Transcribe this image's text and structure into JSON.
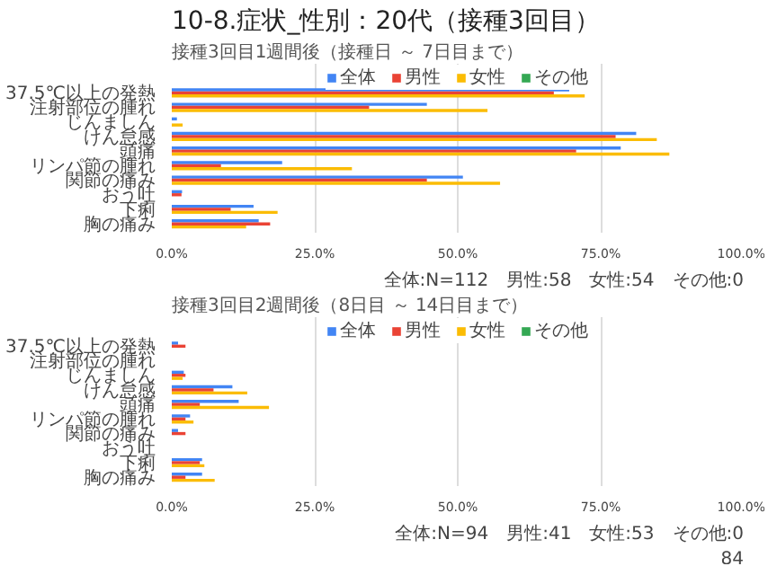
{
  "chart_data": [
    {
      "type": "bar",
      "orientation": "horizontal",
      "title": "10-8.症状_性別：20代（接種3回目）",
      "subtitle": "接種3回目1週間後（接種日 ～ 7日目まで）",
      "categories": [
        "37.5℃以上の発熱",
        "注射部位の腫れ",
        "じんましん",
        "けん怠感",
        "頭痛",
        "リンパ節の腫れ",
        "関節の痛み",
        "おう吐",
        "下痢",
        "胸の痛み"
      ],
      "series": [
        {
          "name": "全体",
          "color": "#4285f4",
          "values": [
            69.5,
            44.6,
            0.9,
            81.2,
            78.5,
            19.3,
            50.9,
            1.8,
            14.3,
            15.2
          ]
        },
        {
          "name": "男性",
          "color": "#ea4335",
          "values": [
            66.8,
            34.5,
            0,
            77.6,
            70.7,
            8.6,
            44.6,
            1.7,
            10.3,
            17.2
          ]
        },
        {
          "name": "女性",
          "color": "#fbbc04",
          "values": [
            72.2,
            55.2,
            1.9,
            84.8,
            87.0,
            31.5,
            57.4,
            0,
            18.5,
            13.0
          ]
        },
        {
          "name": "その他",
          "color": "#34a853",
          "values": [
            0,
            0,
            0,
            0,
            0,
            0,
            0,
            0,
            0,
            0
          ]
        }
      ],
      "xlim": [
        0,
        100
      ],
      "xticks": [
        {
          "value": 0,
          "label": "0.0%"
        },
        {
          "value": 25,
          "label": "25.0%"
        },
        {
          "value": 50,
          "label": "50.0%"
        },
        {
          "value": 75,
          "label": "75.0%"
        },
        {
          "value": 100,
          "label": "100.0%"
        }
      ],
      "grid": "x",
      "legend": "top",
      "annotations": [
        "全体:N=112　男性:58　女性:54　その他:0"
      ]
    },
    {
      "type": "bar",
      "orientation": "horizontal",
      "title": "接種3回目2週間後（8日目 ～ 14日目まで）",
      "categories": [
        "37.5℃以上の発熱",
        "注射部位の腫れ",
        "じんましん",
        "けん怠感",
        "頭痛",
        "リンパ節の腫れ",
        "関節の痛み",
        "おう吐",
        "下痢",
        "胸の痛み"
      ],
      "series": [
        {
          "name": "全体",
          "color": "#4285f4",
          "values": [
            1.1,
            0,
            2.1,
            10.6,
            11.7,
            3.2,
            1.1,
            0,
            5.3,
            5.3
          ]
        },
        {
          "name": "男性",
          "color": "#ea4335",
          "values": [
            2.4,
            0,
            2.4,
            7.3,
            4.9,
            2.4,
            2.4,
            0,
            4.9,
            2.4
          ]
        },
        {
          "name": "女性",
          "color": "#fbbc04",
          "values": [
            0,
            0,
            1.9,
            13.2,
            17.0,
            3.8,
            0,
            0,
            5.7,
            7.5
          ]
        },
        {
          "name": "その他",
          "color": "#34a853",
          "values": [
            0,
            0,
            0,
            0,
            0,
            0,
            0,
            0,
            0,
            0
          ]
        }
      ],
      "xlim": [
        0,
        100
      ],
      "xticks": [
        {
          "value": 0,
          "label": "0.0%"
        },
        {
          "value": 25,
          "label": "25.0%"
        },
        {
          "value": 50,
          "label": "50.0%"
        },
        {
          "value": 75,
          "label": "75.0%"
        },
        {
          "value": 100,
          "label": "100.0%"
        }
      ],
      "grid": "x",
      "legend": "top",
      "annotations": [
        "全体:N=94　男性:41　女性:53　その他:0",
        "84"
      ]
    }
  ]
}
